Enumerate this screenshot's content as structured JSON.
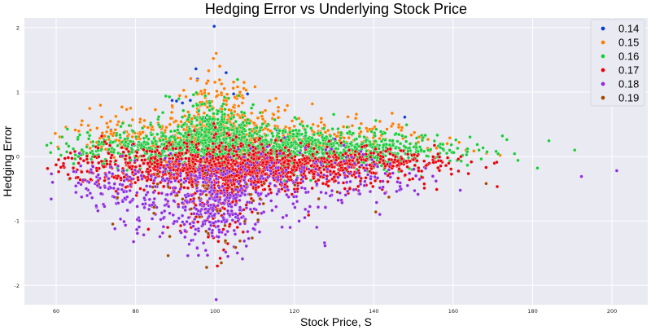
{
  "chart_data": {
    "type": "scatter",
    "title": "Hedging Error vs Underlying Stock Price",
    "xlabel": "Stock Price, S",
    "ylabel": "Hedging Error",
    "xlim": [
      52,
      209
    ],
    "ylim": [
      -2.3,
      2.15
    ],
    "x_ticks": [
      60,
      80,
      100,
      120,
      140,
      160,
      180,
      200
    ],
    "y_ticks": [
      -2,
      -1,
      0,
      1,
      2
    ],
    "grid": true,
    "background": "#eaeaf2",
    "legend_placement": "top-right",
    "series": [
      {
        "name": "0.14",
        "color": "#0a3ad8",
        "points": [
          [
            99.8,
            2.02
          ],
          [
            95.2,
            1.36
          ],
          [
            95.6,
            1.2
          ],
          [
            102.8,
            1.3
          ],
          [
            89.2,
            0.87
          ],
          [
            90.3,
            0.86
          ],
          [
            91.8,
            0.83
          ],
          [
            93.8,
            0.87
          ],
          [
            73.8,
            0.41
          ],
          [
            108.2,
            0.97
          ],
          [
            147.8,
            0.61
          ],
          [
            104.7,
            0.97
          ],
          [
            97.4,
            0.6
          ],
          [
            101.6,
            0.48
          ],
          [
            89.6,
            0.32
          ],
          [
            115.6,
            0.41
          ],
          [
            86.5,
            0.25
          ],
          [
            122.5,
            0.3
          ],
          [
            111.3,
            0.12
          ],
          [
            96.6,
            0.1
          ],
          [
            132.8,
            0.08
          ],
          [
            103.2,
            0.05
          ],
          [
            79.2,
            0.18
          ],
          [
            127.5,
            0.16
          ]
        ]
      },
      {
        "name": "0.15",
        "color": "#ff7c00",
        "seed": 2,
        "clusters": [
          {
            "n": 420,
            "cx": 100,
            "sx": 12,
            "cy": 0.35,
            "sy": 0.22
          },
          {
            "n": 90,
            "cx": 100,
            "sx": 4,
            "cy": 0.75,
            "sy": 0.22
          },
          {
            "n": 140,
            "cx": 128,
            "sx": 14,
            "cy": 0.25,
            "sy": 0.18
          },
          {
            "n": 60,
            "cx": 76,
            "sx": 6,
            "cy": 0.3,
            "sy": 0.17
          }
        ],
        "points": [
          [
            100.3,
            1.6
          ],
          [
            99.6,
            1.52
          ],
          [
            101.2,
            1.4
          ],
          [
            98.4,
            1.33
          ],
          [
            105.7,
            1.08
          ],
          [
            107.3,
            1.15
          ],
          [
            106.3,
            1.0
          ],
          [
            104.6,
            1.06
          ],
          [
            158.5,
            0.2
          ],
          [
            161.5,
            0.22
          ],
          [
            168.4,
            0.05
          ],
          [
            171.8,
            0.02
          ],
          [
            163.2,
            0.1
          ],
          [
            152.5,
            0.32
          ],
          [
            155.8,
            0.13
          ],
          [
            147.1,
            0.45
          ],
          [
            70.3,
            0.44
          ],
          [
            66.4,
            0.08
          ],
          [
            68.6,
            0.41
          ]
        ]
      },
      {
        "name": "0.16",
        "color": "#1ac938",
        "seed": 3,
        "clusters": [
          {
            "n": 1300,
            "cx": 108,
            "sx": 20,
            "cy": 0.12,
            "sy": 0.16
          },
          {
            "n": 260,
            "cx": 100,
            "sx": 5,
            "cy": 0.42,
            "sy": 0.22
          },
          {
            "n": 220,
            "cx": 140,
            "sx": 13,
            "cy": 0.07,
            "sy": 0.12
          }
        ],
        "points": [
          [
            58.6,
            0.06
          ],
          [
            60.6,
            0.12
          ],
          [
            62.6,
            0.2
          ],
          [
            64.3,
            0.12
          ],
          [
            65.6,
            0.0
          ],
          [
            67.7,
            0.15
          ],
          [
            61.2,
            0.02
          ],
          [
            163.6,
            0.12
          ],
          [
            166.5,
            0.1
          ],
          [
            170.8,
            0.08
          ],
          [
            172.4,
            0.32
          ],
          [
            176.3,
            -0.06
          ],
          [
            181.2,
            -0.18
          ],
          [
            190.6,
            0.1
          ],
          [
            158.4,
            0.05
          ],
          [
            155.5,
            -0.02
          ],
          [
            102.4,
            0.92
          ],
          [
            98.7,
            0.83
          ]
        ]
      },
      {
        "name": "0.17",
        "color": "#e8000b",
        "seed": 4,
        "clusters": [
          {
            "n": 1300,
            "cx": 105,
            "sx": 19,
            "cy": -0.18,
            "sy": 0.17
          },
          {
            "n": 220,
            "cx": 100,
            "sx": 5,
            "cy": -0.55,
            "sy": 0.33
          },
          {
            "n": 160,
            "cx": 138,
            "sx": 12,
            "cy": -0.09,
            "sy": 0.1
          }
        ],
        "points": [
          [
            100.2,
            0.35
          ],
          [
            101.3,
            -1.58
          ],
          [
            100.6,
            -1.7
          ],
          [
            102.2,
            -1.45
          ],
          [
            98.3,
            -1.25
          ],
          [
            62.2,
            -0.03
          ],
          [
            64.3,
            -0.18
          ],
          [
            66.4,
            -0.24
          ],
          [
            60.6,
            -0.05
          ],
          [
            153.2,
            -0.14
          ],
          [
            158.6,
            -0.02
          ],
          [
            161.3,
            -0.04
          ],
          [
            99.5,
            0.2
          ],
          [
            100.1,
            0.45
          ]
        ]
      },
      {
        "name": "0.18",
        "color": "#8b2be2",
        "seed": 5,
        "clusters": [
          {
            "n": 350,
            "cx": 98,
            "sx": 15,
            "cy": -0.55,
            "sy": 0.3
          },
          {
            "n": 160,
            "cx": 100,
            "sx": 6,
            "cy": -0.9,
            "sy": 0.3
          },
          {
            "n": 120,
            "cx": 130,
            "sx": 15,
            "cy": -0.35,
            "sy": 0.22
          },
          {
            "n": 60,
            "cx": 75,
            "sx": 6,
            "cy": -0.4,
            "sy": 0.2
          }
        ],
        "points": [
          [
            58.8,
            -0.27
          ],
          [
            59.1,
            -0.4
          ],
          [
            74.8,
            -1.12
          ],
          [
            100.3,
            -2.22
          ],
          [
            192.3,
            -0.31
          ],
          [
            201.2,
            -0.22
          ],
          [
            142.8,
            -0.57
          ],
          [
            148.5,
            -0.45
          ],
          [
            150.6,
            -0.3
          ],
          [
            68.9,
            -0.25
          ],
          [
            70.4,
            -0.45
          ]
        ]
      },
      {
        "name": "0.19",
        "color": "#9f4800",
        "seed": 6,
        "clusters": [
          {
            "n": 45,
            "cx": 100,
            "sx": 10,
            "cy": -0.75,
            "sy": 0.35
          }
        ],
        "points": [
          [
            140.5,
            -0.86
          ],
          [
            168.3,
            -0.42
          ],
          [
            97.9,
            -1.72
          ],
          [
            101.6,
            -1.65
          ],
          [
            143.8,
            -0.63
          ],
          [
            84.6,
            -0.88
          ],
          [
            112.4,
            -0.42
          ],
          [
            130.8,
            -0.55
          ]
        ]
      }
    ]
  }
}
